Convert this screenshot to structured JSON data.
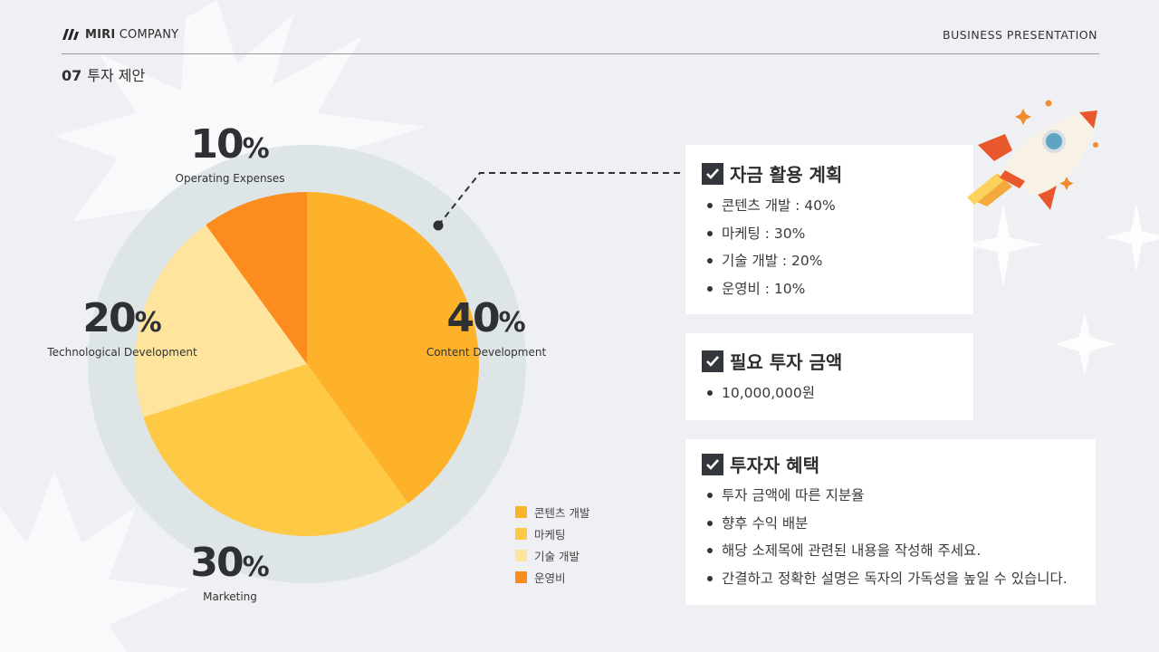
{
  "header": {
    "brand_bold": "MIRI",
    "brand_rest": "COMPANY",
    "tagline": "BUSINESS PRESENTATION",
    "section_number": "07",
    "section_title": "투자 제안"
  },
  "chart_data": {
    "type": "pie",
    "categories": [
      "콘텐츠 개발",
      "마케팅",
      "기술 개발",
      "운영비"
    ],
    "values": [
      40,
      30,
      20,
      10
    ],
    "unit": "%",
    "colors": [
      "#fdb22a",
      "#fec945",
      "#fee49c",
      "#fc8c1e"
    ],
    "labels": [
      {
        "value": "40",
        "unit": "%",
        "text": "Content Development"
      },
      {
        "value": "30",
        "unit": "%",
        "text": "Marketing"
      },
      {
        "value": "20",
        "unit": "%",
        "text": "Technological Development"
      },
      {
        "value": "10",
        "unit": "%",
        "text": "Operating Expenses"
      }
    ],
    "legend_position": "bottom-right"
  },
  "cards": [
    {
      "title": "자금 활용 계획",
      "items": [
        "콘텐츠 개발 : 40%",
        "마케팅 : 30%",
        "기술 개발 : 20%",
        "운영비 : 10%"
      ]
    },
    {
      "title": "필요 투자 금액",
      "items": [
        "10,000,000원"
      ]
    },
    {
      "title": "투자자 혜택",
      "items": [
        "투자 금액에 따른 지분율",
        "향후 수익 배분",
        "해당 소제목에 관련된 내용을 작성해 주세요.",
        "간결하고 정확한 설명은 독자의 가독성을 높일 수 있습니다."
      ]
    }
  ],
  "icons": {
    "brand": "logo-mark-icon",
    "check": "check-icon",
    "illustration": "rocket-icon"
  },
  "colors": {
    "background": "#eef0f3",
    "pie_ring": "#dde5e7",
    "check_box": "#33373c"
  }
}
